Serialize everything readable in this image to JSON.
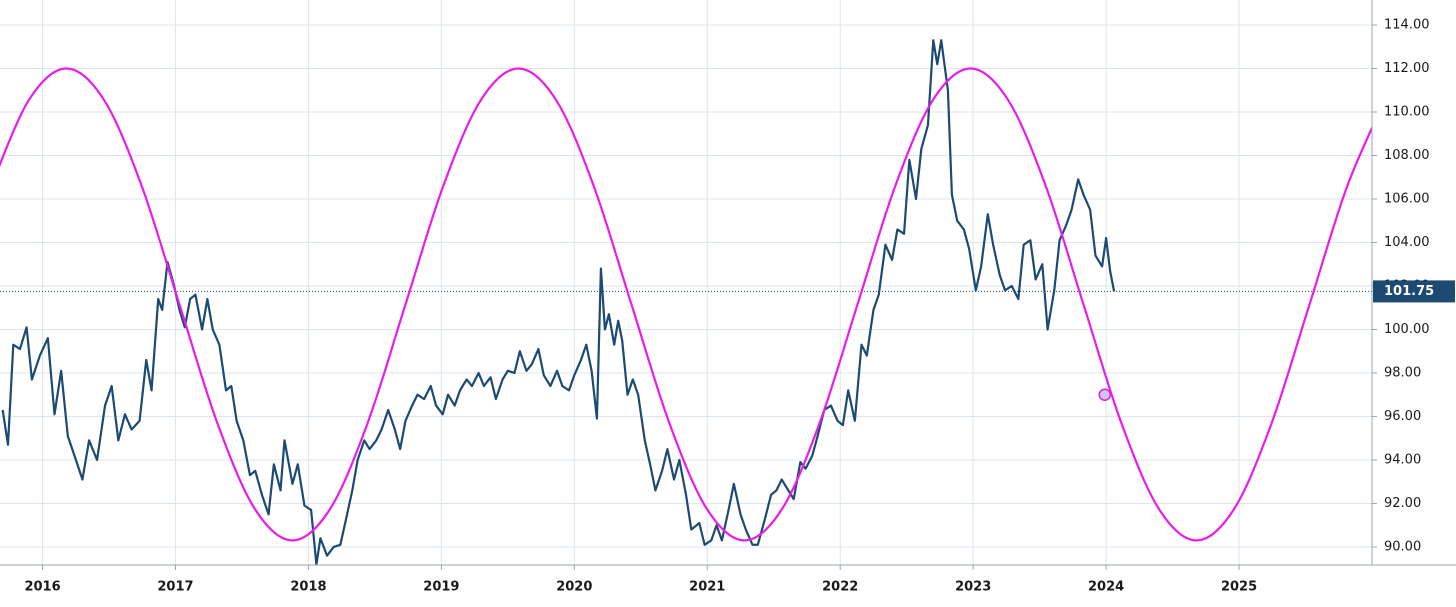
{
  "chart_data": {
    "type": "line",
    "xlim": [
      2015.68,
      2026.0
    ],
    "xticks": [
      2016,
      2017,
      2018,
      2019,
      2020,
      2021,
      2022,
      2023,
      2024,
      2025
    ],
    "ylim": [
      89.17,
      115.15
    ],
    "yticks": [
      {
        "value": 90,
        "label": "90.00"
      },
      {
        "value": 92,
        "label": "92.00"
      },
      {
        "value": 94,
        "label": "94.00"
      },
      {
        "value": 96,
        "label": "96.00"
      },
      {
        "value": 98,
        "label": "98.00"
      },
      {
        "value": 100,
        "label": "100.00"
      },
      {
        "value": 102,
        "label": "102.00"
      },
      {
        "value": 104,
        "label": "104.00"
      },
      {
        "value": 106,
        "label": "106.00"
      },
      {
        "value": 108,
        "label": "108.00"
      },
      {
        "value": 110,
        "label": "110.00"
      },
      {
        "value": 112,
        "label": "112.00"
      },
      {
        "value": 114,
        "label": "114.00"
      }
    ],
    "grid": true,
    "last_value": 101.75,
    "marker": {
      "x": 2023.99,
      "y": 97.0,
      "color": "#c8c8e8"
    },
    "series": [
      {
        "color": "#1c4a73",
        "smooth": false,
        "x": [
          2015.7,
          2015.74,
          2015.78,
          2015.83,
          2015.88,
          2015.92,
          2015.98,
          2016.04,
          2016.09,
          2016.14,
          2016.19,
          2016.24,
          2016.3,
          2016.35,
          2016.41,
          2016.47,
          2016.52,
          2016.57,
          2016.62,
          2016.67,
          2016.73,
          2016.78,
          2016.82,
          2016.87,
          2016.9,
          2016.94,
          2016.99,
          2017.03,
          2017.07,
          2017.11,
          2017.15,
          2017.2,
          2017.24,
          2017.28,
          2017.33,
          2017.38,
          2017.42,
          2017.46,
          2017.51,
          2017.56,
          2017.6,
          2017.65,
          2017.7,
          2017.74,
          2017.79,
          2017.82,
          2017.88,
          2017.92,
          2017.97,
          2018.02,
          2018.06,
          2018.09,
          2018.14,
          2018.19,
          2018.24,
          2018.28,
          2018.33,
          2018.37,
          2018.42,
          2018.46,
          2018.51,
          2018.55,
          2018.6,
          2018.65,
          2018.69,
          2018.73,
          2018.78,
          2018.82,
          2018.87,
          2018.92,
          2018.96,
          2019.01,
          2019.05,
          2019.1,
          2019.14,
          2019.19,
          2019.23,
          2019.28,
          2019.32,
          2019.37,
          2019.41,
          2019.46,
          2019.5,
          2019.55,
          2019.59,
          2019.64,
          2019.68,
          2019.73,
          2019.77,
          2019.82,
          2019.87,
          2019.91,
          2019.96,
          2020.0,
          2020.05,
          2020.09,
          2020.13,
          2020.17,
          2020.2,
          2020.23,
          2020.26,
          2020.3,
          2020.33,
          2020.36,
          2020.4,
          2020.44,
          2020.48,
          2020.53,
          2020.57,
          2020.61,
          2020.66,
          2020.7,
          2020.75,
          2020.79,
          2020.84,
          2020.88,
          2020.94,
          2020.98,
          2021.03,
          2021.07,
          2021.11,
          2021.16,
          2021.2,
          2021.25,
          2021.29,
          2021.34,
          2021.38,
          2021.43,
          2021.48,
          2021.52,
          2021.56,
          2021.61,
          2021.65,
          2021.7,
          2021.74,
          2021.79,
          2021.83,
          2021.88,
          2021.93,
          2021.98,
          2022.02,
          2022.06,
          2022.11,
          2022.16,
          2022.2,
          2022.25,
          2022.29,
          2022.34,
          2022.39,
          2022.43,
          2022.48,
          2022.52,
          2022.57,
          2022.61,
          2022.66,
          2022.7,
          2022.73,
          2022.76,
          2022.81,
          2022.84,
          2022.88,
          2022.93,
          2022.97,
          2023.02,
          2023.06,
          2023.11,
          2023.15,
          2023.2,
          2023.24,
          2023.29,
          2023.34,
          2023.38,
          2023.43,
          2023.47,
          2023.52,
          2023.56,
          2023.61,
          2023.65,
          2023.7,
          2023.74,
          2023.79,
          2023.83,
          2023.88,
          2023.92,
          2023.97,
          2024.0,
          2024.03,
          2024.06
        ],
        "values": [
          96.3,
          94.7,
          99.3,
          99.1,
          100.1,
          97.7,
          98.8,
          99.6,
          96.1,
          98.1,
          95.1,
          94.2,
          93.1,
          94.9,
          94.0,
          96.5,
          97.4,
          94.9,
          96.1,
          95.4,
          95.8,
          98.6,
          97.2,
          101.4,
          100.9,
          103.1,
          102.0,
          100.9,
          100.1,
          101.4,
          101.6,
          100.0,
          101.4,
          100.0,
          99.3,
          97.2,
          97.4,
          95.8,
          94.9,
          93.3,
          93.5,
          92.4,
          91.5,
          93.8,
          92.6,
          94.9,
          92.9,
          93.8,
          91.9,
          91.7,
          89.2,
          90.4,
          89.6,
          90.0,
          90.1,
          91.2,
          92.6,
          94.0,
          94.9,
          94.5,
          94.9,
          95.4,
          96.3,
          95.4,
          94.5,
          95.8,
          96.5,
          97.0,
          96.8,
          97.4,
          96.5,
          96.1,
          97.0,
          96.5,
          97.2,
          97.7,
          97.4,
          98.0,
          97.4,
          97.8,
          96.8,
          97.7,
          98.1,
          98.0,
          99.0,
          98.1,
          98.4,
          99.1,
          97.9,
          97.4,
          98.1,
          97.4,
          97.2,
          97.9,
          98.6,
          99.3,
          98.1,
          95.9,
          102.8,
          100.0,
          100.7,
          99.3,
          100.4,
          99.5,
          97.0,
          97.7,
          97.0,
          94.9,
          93.8,
          92.6,
          93.5,
          94.5,
          93.1,
          94.0,
          92.4,
          90.8,
          91.1,
          90.1,
          90.3,
          91.0,
          90.3,
          91.7,
          92.9,
          91.5,
          90.8,
          90.1,
          90.1,
          91.2,
          92.4,
          92.6,
          93.1,
          92.6,
          92.2,
          93.9,
          93.6,
          94.2,
          95.1,
          96.3,
          96.5,
          95.8,
          95.6,
          97.2,
          95.8,
          99.3,
          98.8,
          100.9,
          101.6,
          103.9,
          103.2,
          104.6,
          104.4,
          107.8,
          106.0,
          108.3,
          109.4,
          113.3,
          112.2,
          113.3,
          111.0,
          106.2,
          105.0,
          104.6,
          103.7,
          101.8,
          102.9,
          105.3,
          103.9,
          102.5,
          101.8,
          102.0,
          101.4,
          103.9,
          104.1,
          102.3,
          103.0,
          100.0,
          101.8,
          104.1,
          104.8,
          105.5,
          106.9,
          106.2,
          105.5,
          103.4,
          102.9,
          104.2,
          102.7,
          101.75
        ]
      },
      {
        "color": "#e81ee8",
        "smooth": true,
        "x": [
          2015.613,
          2015.897,
          2016.18,
          2016.463,
          2016.747,
          2017.03,
          2017.313,
          2017.597,
          2017.88,
          2018.163,
          2018.447,
          2018.73,
          2019.013,
          2019.297,
          2019.58,
          2019.863,
          2020.147,
          2020.43,
          2020.713,
          2020.997,
          2021.28,
          2021.563,
          2021.847,
          2022.13,
          2022.413,
          2022.697,
          2022.98,
          2023.263,
          2023.547,
          2023.83,
          2024.113,
          2024.397,
          2024.68,
          2024.963,
          2025.247,
          2025.53,
          2025.813,
          2026.097
        ],
        "values": [
          106.58,
          110.55,
          112.0,
          110.55,
          106.58,
          101.15,
          95.73,
          91.75,
          90.3,
          91.75,
          95.73,
          101.15,
          106.58,
          110.55,
          112.0,
          110.55,
          106.58,
          101.15,
          95.73,
          91.75,
          90.3,
          91.75,
          95.73,
          101.15,
          106.58,
          110.55,
          112.0,
          110.55,
          106.58,
          101.15,
          95.73,
          91.75,
          90.3,
          91.75,
          95.73,
          101.15,
          106.58,
          110.55
        ]
      }
    ]
  }
}
